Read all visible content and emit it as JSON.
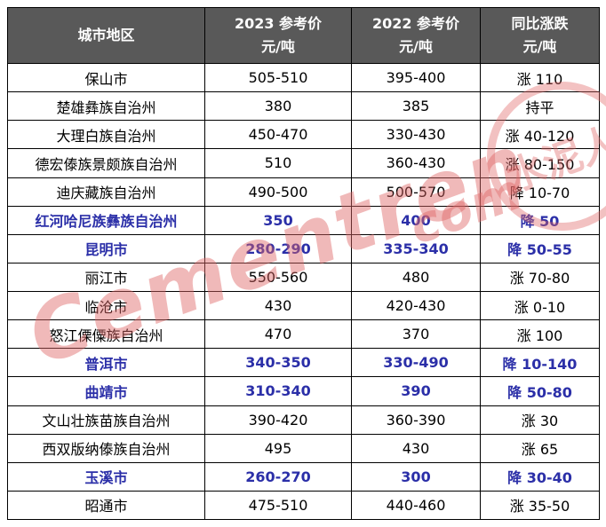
{
  "colors": {
    "header_bg": "#595959",
    "header_text": "#ffffff",
    "highlight_text": "#2b2fa8",
    "border": "#000000",
    "watermark": "#e06666"
  },
  "watermark": {
    "brand": "Cementren",
    "domain_suffix": "com",
    "badge": "水泥人"
  },
  "chart_data": {
    "type": "table",
    "columns": [
      {
        "title": "城市地区",
        "unit": ""
      },
      {
        "title": "2023 参考价",
        "unit": "元/吨"
      },
      {
        "title": "2022 参考价",
        "unit": "元/吨"
      },
      {
        "title": "同比涨跌",
        "unit": "元/吨"
      }
    ],
    "rows": [
      {
        "region": "保山市",
        "price_2023": "505-510",
        "price_2022": "395-400",
        "yoy_change": "涨 110",
        "highlight": false
      },
      {
        "region": "楚雄彝族自治州",
        "price_2023": "380",
        "price_2022": "385",
        "yoy_change": "持平",
        "highlight": false
      },
      {
        "region": "大理白族自治州",
        "price_2023": "450-470",
        "price_2022": "330-430",
        "yoy_change": "涨 40-120",
        "highlight": false
      },
      {
        "region": "德宏傣族景颇族自治州",
        "price_2023": "510",
        "price_2022": "360-430",
        "yoy_change": "涨 80-150",
        "highlight": false
      },
      {
        "region": "迪庆藏族自治州",
        "price_2023": "490-500",
        "price_2022": "500-570",
        "yoy_change": "降 10-70",
        "highlight": false
      },
      {
        "region": "红河哈尼族彝族自治州",
        "price_2023": "350",
        "price_2022": "400",
        "yoy_change": "降 50",
        "highlight": true
      },
      {
        "region": "昆明市",
        "price_2023": "280-290",
        "price_2022": "335-340",
        "yoy_change": "降 50-55",
        "highlight": true
      },
      {
        "region": "丽江市",
        "price_2023": "550-560",
        "price_2022": "480",
        "yoy_change": "涨 70-80",
        "highlight": false
      },
      {
        "region": "临沧市",
        "price_2023": "430",
        "price_2022": "420-430",
        "yoy_change": "涨 0-10",
        "highlight": false
      },
      {
        "region": "怒江傈僳族自治州",
        "price_2023": "470",
        "price_2022": "370",
        "yoy_change": "涨 100",
        "highlight": false
      },
      {
        "region": "普洱市",
        "price_2023": "340-350",
        "price_2022": "330-490",
        "yoy_change": "降 10-140",
        "highlight": true
      },
      {
        "region": "曲靖市",
        "price_2023": "310-340",
        "price_2022": "390",
        "yoy_change": "降 50-80",
        "highlight": true
      },
      {
        "region": "文山壮族苗族自治州",
        "price_2023": "390-420",
        "price_2022": "360-390",
        "yoy_change": "涨 30",
        "highlight": false
      },
      {
        "region": "西双版纳傣族自治州",
        "price_2023": "495",
        "price_2022": "430",
        "yoy_change": "涨 65",
        "highlight": false
      },
      {
        "region": "玉溪市",
        "price_2023": "260-270",
        "price_2022": "300",
        "yoy_change": "降 30-40",
        "highlight": true
      },
      {
        "region": "昭通市",
        "price_2023": "475-510",
        "price_2022": "440-460",
        "yoy_change": "涨 35-50",
        "highlight": false
      }
    ]
  }
}
